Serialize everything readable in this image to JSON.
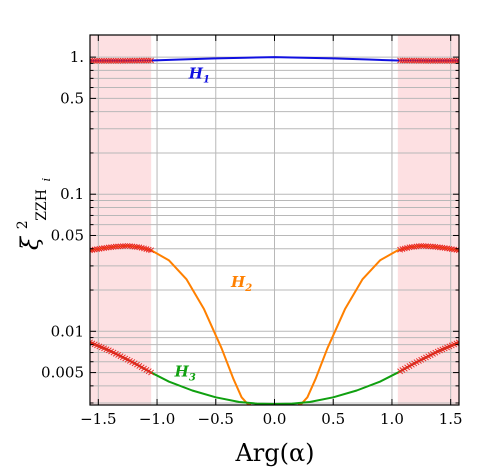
{
  "chart_data": {
    "type": "line",
    "title": "",
    "xlabel": "Arg(α)",
    "ylabel": "ξ²_ZZH_i",
    "ylabel_parts": {
      "base": "ξ",
      "sup": "2",
      "sub_main": "ZZH",
      "sub_index": "i"
    },
    "xlim": [
      -1.5708,
      1.5708
    ],
    "ylim": [
      0.0029,
      1.45
    ],
    "yscale": "log",
    "grid": true,
    "x_ticks": [
      -1.5,
      -1.0,
      -0.5,
      0.0,
      0.5,
      1.0,
      1.5
    ],
    "x_tick_labels": [
      "−1.5",
      "−1.0",
      "−0.5",
      "0.0",
      "0.5",
      "1.0",
      "1.5"
    ],
    "y_ticks": [
      0.005,
      0.01,
      0.05,
      0.1,
      0.5,
      1.0
    ],
    "y_tick_labels": [
      "0.005",
      "0.01",
      "0.05",
      "0.1",
      "0.5",
      "1."
    ],
    "excluded_regions": [
      [
        -1.5708,
        -1.05
      ],
      [
        1.05,
        1.5708
      ]
    ],
    "series": [
      {
        "name": "H",
        "index": "1",
        "color": "#1010e0",
        "x": [
          -1.5708,
          -1.3,
          -1.05,
          -0.8,
          -0.5,
          -0.25,
          0.0,
          0.25,
          0.5,
          0.8,
          1.05,
          1.3,
          1.5708
        ],
        "y": [
          0.94,
          0.94,
          0.945,
          0.96,
          0.98,
          0.99,
          1.0,
          0.99,
          0.98,
          0.96,
          0.945,
          0.94,
          0.94
        ]
      },
      {
        "name": "H",
        "index": "2",
        "color": "#ff8000",
        "segments": [
          {
            "x": [
              -1.5708,
              -1.45,
              -1.35,
              -1.25,
              -1.15,
              -1.05,
              -0.9,
              -0.75,
              -0.6,
              -0.45,
              -0.35,
              -0.28,
              -0.22,
              -0.2
            ],
            "y": [
              0.039,
              0.0405,
              0.0415,
              0.042,
              0.041,
              0.039,
              0.033,
              0.024,
              0.0145,
              0.0075,
              0.0045,
              0.0033,
              0.0029,
              0.0029
            ]
          },
          {
            "x": [
              0.2,
              0.22,
              0.28,
              0.35,
              0.45,
              0.6,
              0.75,
              0.9,
              1.05,
              1.15,
              1.25,
              1.35,
              1.45,
              1.5708
            ],
            "y": [
              0.0029,
              0.0029,
              0.0033,
              0.0045,
              0.0075,
              0.0145,
              0.024,
              0.033,
              0.039,
              0.041,
              0.042,
              0.0415,
              0.0405,
              0.039
            ]
          }
        ]
      },
      {
        "name": "H",
        "index": "3",
        "color": "#10a010",
        "x": [
          -1.5708,
          -1.4,
          -1.2,
          -1.05,
          -0.9,
          -0.7,
          -0.5,
          -0.3,
          -0.15,
          0.0,
          0.15,
          0.3,
          0.5,
          0.7,
          0.9,
          1.05,
          1.2,
          1.4,
          1.5708
        ],
        "y": [
          0.0083,
          0.0072,
          0.0059,
          0.005,
          0.0043,
          0.0037,
          0.0033,
          0.00305,
          0.00297,
          0.00295,
          0.00297,
          0.00305,
          0.0033,
          0.0037,
          0.0043,
          0.005,
          0.0059,
          0.0072,
          0.0083
        ]
      }
    ]
  }
}
